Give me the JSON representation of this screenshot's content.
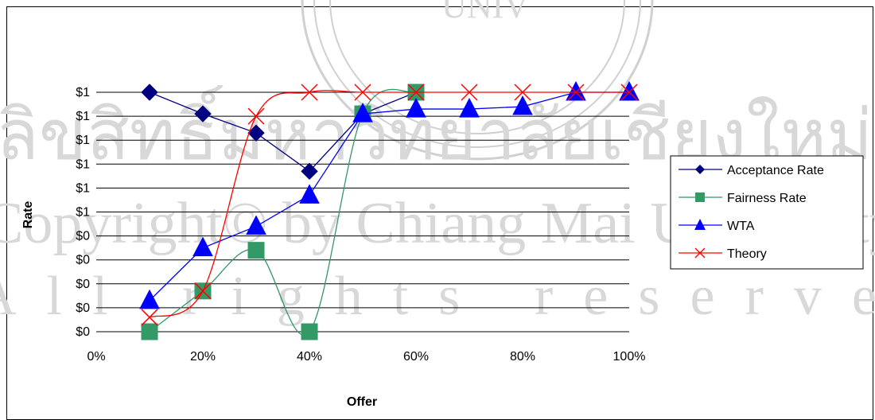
{
  "chart_data": {
    "type": "line",
    "title": "",
    "xlabel": "Offer",
    "ylabel": "Rate",
    "x": [
      0.1,
      0.2,
      0.3,
      0.4,
      0.5,
      0.6,
      0.7,
      0.8,
      0.9,
      1.0
    ],
    "x_tick_labels": [
      "0%",
      "20%",
      "40%",
      "60%",
      "80%",
      "100%"
    ],
    "y_tick_labels": [
      "$0",
      "$0",
      "$0",
      "$0",
      "$0",
      "$1",
      "$1",
      "$1",
      "$1",
      "$1",
      "$1"
    ],
    "xlim": [
      0,
      1
    ],
    "ylim": [
      0,
      1
    ],
    "grid": "horizontal",
    "legend_position": "right",
    "series": [
      {
        "name": "Acceptance Rate",
        "color": "#000080",
        "marker": "diamond",
        "smooth": false,
        "x": [
          0.1,
          0.2,
          0.3,
          0.4,
          0.5,
          0.6
        ],
        "y": [
          1.0,
          0.91,
          0.83,
          0.67,
          0.91,
          1.0
        ]
      },
      {
        "name": "Fairness Rate",
        "color": "#339966",
        "marker": "square",
        "smooth": true,
        "x": [
          0.1,
          0.2,
          0.3,
          0.4,
          0.5,
          0.6
        ],
        "y": [
          0.0,
          0.17,
          0.34,
          0.0,
          0.91,
          1.0
        ]
      },
      {
        "name": "WTA",
        "color": "#0000FF",
        "marker": "triangle",
        "smooth": false,
        "x": [
          0.1,
          0.2,
          0.3,
          0.4,
          0.5,
          0.6,
          0.7,
          0.8,
          0.9,
          1.0
        ],
        "y": [
          0.13,
          0.35,
          0.44,
          0.57,
          0.91,
          0.93,
          0.93,
          0.94,
          1.0,
          1.0
        ]
      },
      {
        "name": "Theory",
        "color": "#FF0000",
        "marker": "x",
        "smooth": true,
        "x": [
          0.1,
          0.2,
          0.3,
          0.4,
          0.5,
          0.6,
          0.7,
          0.8,
          0.9,
          1.0
        ],
        "y": [
          0.06,
          0.17,
          0.9,
          1.0,
          1.0,
          1.0,
          1.0,
          1.0,
          1.0,
          1.0
        ]
      }
    ]
  },
  "watermark": {
    "lines": [
      "ลิขสิทธิ์มหาวิทยาลัยเชียงใหม่",
      "Copyright© by Chiang Mai University",
      "All rights reserved"
    ],
    "seal_text": "UNIV",
    "color": "#c8c8c8"
  }
}
